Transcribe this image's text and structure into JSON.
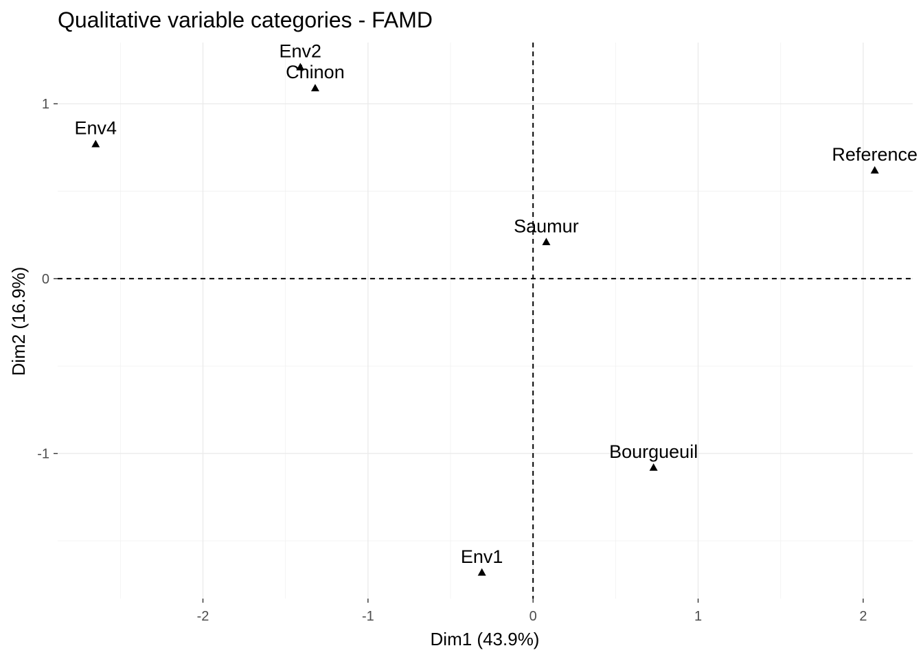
{
  "chart_data": {
    "type": "scatter",
    "title": "Qualitative variable categories - FAMD",
    "xlabel": "Dim1 (43.9%)",
    "ylabel": "Dim2 (16.9%)",
    "xlim": [
      -2.88,
      2.3
    ],
    "ylim": [
      -1.83,
      1.35
    ],
    "x_ticks": [
      -2,
      -1,
      0,
      1,
      2
    ],
    "y_ticks": [
      -1,
      0,
      1
    ],
    "grid": true,
    "reference_lines": {
      "x": 0,
      "y": 0,
      "style": "dashed"
    },
    "marker": "triangle",
    "points": [
      {
        "label": "Env2",
        "x": -1.41,
        "y": 1.21
      },
      {
        "label": "Chinon",
        "x": -1.32,
        "y": 1.09
      },
      {
        "label": "Env4",
        "x": -2.65,
        "y": 0.77
      },
      {
        "label": "Reference",
        "x": 2.07,
        "y": 0.62
      },
      {
        "label": "Saumur",
        "x": 0.08,
        "y": 0.21
      },
      {
        "label": "Bourgueuil",
        "x": 0.73,
        "y": -1.08
      },
      {
        "label": "Env1",
        "x": -0.31,
        "y": -1.68
      }
    ]
  }
}
